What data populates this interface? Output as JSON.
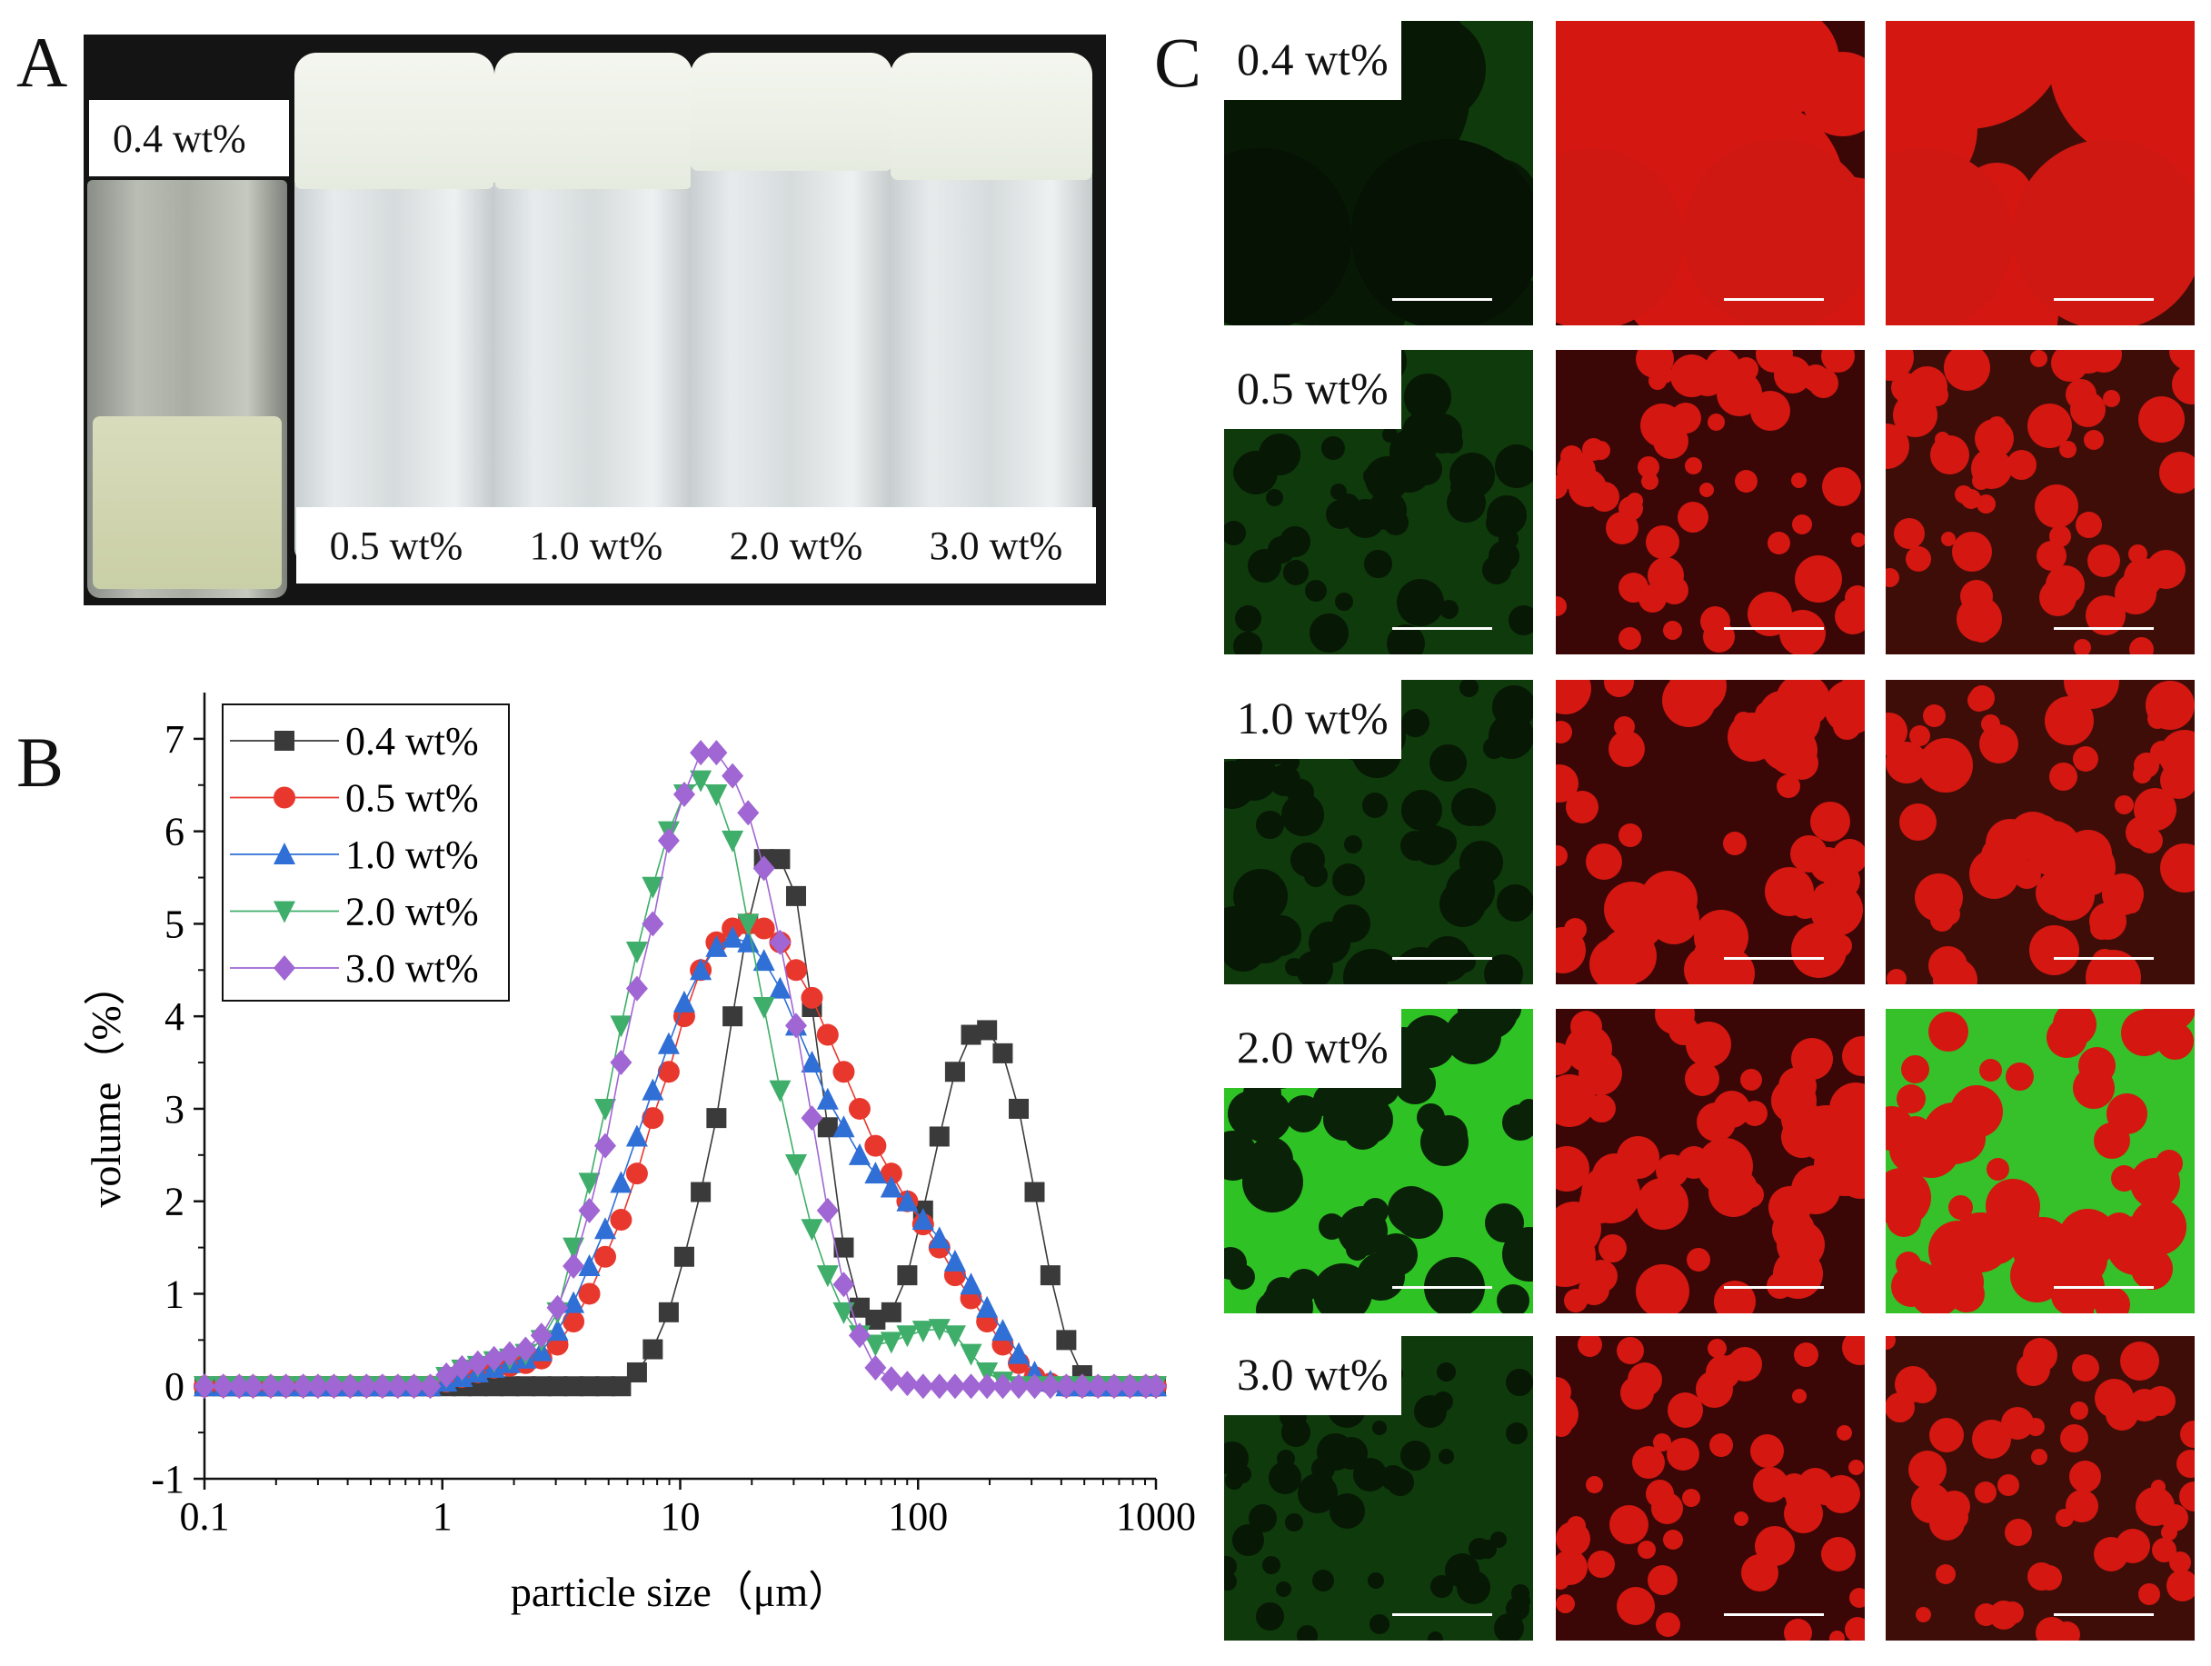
{
  "figure": {
    "panel_labels": {
      "a": "A",
      "b": "B",
      "c": "C"
    }
  },
  "panel_a": {
    "jar_labels": [
      "0.4 wt%",
      "0.5 wt%",
      "1.0 wt%",
      "2.0 wt%",
      "3.0 wt%"
    ]
  },
  "panel_c": {
    "row_labels": [
      "0.4 wt%",
      "0.5 wt%",
      "1.0 wt%",
      "2.0 wt%",
      "3.0 wt%"
    ],
    "colors": {
      "green": "#1fd61a",
      "red": "#e0120c",
      "dark_green": "#0b2208",
      "dark_red": "#3a0606"
    }
  },
  "chart_data": {
    "type": "scatter",
    "xscale": "log",
    "xlabel": "particle size（μm）",
    "ylabel": "volume（%）",
    "xlim": [
      0.1,
      1000
    ],
    "ylim": [
      -1,
      7.5
    ],
    "xticks": [
      "0.1",
      "1",
      "10",
      "100",
      "1000"
    ],
    "yticks": [
      "-1",
      "0",
      "1",
      "2",
      "3",
      "4",
      "5",
      "6",
      "7"
    ],
    "legend_position": "top-left",
    "series": [
      {
        "name": "0.4 wt%",
        "marker": "square",
        "color": "#3a3a3a",
        "points": [
          [
            0.1,
            0
          ],
          [
            0.12,
            0
          ],
          [
            0.14,
            0
          ],
          [
            0.16,
            0
          ],
          [
            0.19,
            0
          ],
          [
            0.22,
            0
          ],
          [
            0.26,
            0
          ],
          [
            0.3,
            0
          ],
          [
            0.35,
            0
          ],
          [
            0.41,
            0
          ],
          [
            0.48,
            0
          ],
          [
            0.56,
            0
          ],
          [
            0.65,
            0
          ],
          [
            0.76,
            0
          ],
          [
            0.89,
            0
          ],
          [
            1.04,
            0
          ],
          [
            1.21,
            0
          ],
          [
            1.41,
            0
          ],
          [
            1.65,
            0
          ],
          [
            1.92,
            0
          ],
          [
            2.24,
            0
          ],
          [
            2.61,
            0
          ],
          [
            3.05,
            0
          ],
          [
            3.56,
            0
          ],
          [
            4.15,
            0
          ],
          [
            4.84,
            0
          ],
          [
            5.64,
            0
          ],
          [
            6.58,
            0.15
          ],
          [
            7.67,
            0.4
          ],
          [
            8.95,
            0.8
          ],
          [
            10.4,
            1.4
          ],
          [
            12.2,
            2.1
          ],
          [
            14.2,
            2.9
          ],
          [
            16.6,
            4.0
          ],
          [
            19.3,
            5.0
          ],
          [
            22.5,
            5.7
          ],
          [
            26.3,
            5.7
          ],
          [
            30.7,
            5.3
          ],
          [
            35.8,
            4.1
          ],
          [
            41.7,
            2.8
          ],
          [
            48.7,
            1.5
          ],
          [
            56.8,
            0.85
          ],
          [
            66.2,
            0.72
          ],
          [
            77.2,
            0.8
          ],
          [
            90.1,
            1.2
          ],
          [
            105,
            1.9
          ],
          [
            123,
            2.7
          ],
          [
            143,
            3.4
          ],
          [
            167,
            3.8
          ],
          [
            195,
            3.85
          ],
          [
            227,
            3.6
          ],
          [
            265,
            3.0
          ],
          [
            309,
            2.1
          ],
          [
            360,
            1.2
          ],
          [
            420,
            0.5
          ],
          [
            490,
            0.12
          ],
          [
            571,
            0
          ],
          [
            667,
            0
          ],
          [
            778,
            0
          ],
          [
            907,
            0
          ],
          [
            1000,
            0
          ]
        ]
      },
      {
        "name": "0.5 wt%",
        "marker": "circle",
        "color": "#e8382e",
        "points": [
          [
            0.1,
            0
          ],
          [
            0.12,
            0
          ],
          [
            0.14,
            0
          ],
          [
            0.16,
            0
          ],
          [
            0.19,
            0
          ],
          [
            0.22,
            0
          ],
          [
            0.26,
            0
          ],
          [
            0.3,
            0
          ],
          [
            0.35,
            0
          ],
          [
            0.41,
            0
          ],
          [
            0.48,
            0
          ],
          [
            0.56,
            0
          ],
          [
            0.65,
            0
          ],
          [
            0.76,
            0
          ],
          [
            0.89,
            0
          ],
          [
            1.04,
            0.05
          ],
          [
            1.21,
            0.1
          ],
          [
            1.41,
            0.15
          ],
          [
            1.65,
            0.2
          ],
          [
            1.92,
            0.22
          ],
          [
            2.24,
            0.25
          ],
          [
            2.61,
            0.3
          ],
          [
            3.05,
            0.45
          ],
          [
            3.56,
            0.7
          ],
          [
            4.15,
            1.0
          ],
          [
            4.84,
            1.4
          ],
          [
            5.64,
            1.8
          ],
          [
            6.58,
            2.3
          ],
          [
            7.67,
            2.9
          ],
          [
            8.95,
            3.4
          ],
          [
            10.4,
            4.0
          ],
          [
            12.2,
            4.5
          ],
          [
            14.2,
            4.8
          ],
          [
            16.6,
            4.95
          ],
          [
            19.3,
            5.0
          ],
          [
            22.5,
            4.95
          ],
          [
            26.3,
            4.8
          ],
          [
            30.7,
            4.5
          ],
          [
            35.8,
            4.2
          ],
          [
            41.7,
            3.8
          ],
          [
            48.7,
            3.4
          ],
          [
            56.8,
            3.0
          ],
          [
            66.2,
            2.6
          ],
          [
            77.2,
            2.3
          ],
          [
            90.1,
            2.0
          ],
          [
            105,
            1.75
          ],
          [
            123,
            1.5
          ],
          [
            143,
            1.2
          ],
          [
            167,
            0.95
          ],
          [
            195,
            0.7
          ],
          [
            227,
            0.45
          ],
          [
            265,
            0.25
          ],
          [
            309,
            0.1
          ],
          [
            360,
            0.03
          ],
          [
            420,
            0
          ],
          [
            490,
            0
          ],
          [
            571,
            0
          ],
          [
            667,
            0
          ],
          [
            778,
            0
          ],
          [
            907,
            0
          ],
          [
            1000,
            0
          ]
        ]
      },
      {
        "name": "1.0 wt%",
        "marker": "triangle-up",
        "color": "#2f6fd6",
        "points": [
          [
            0.1,
            0
          ],
          [
            0.12,
            0
          ],
          [
            0.14,
            0
          ],
          [
            0.16,
            0
          ],
          [
            0.19,
            0
          ],
          [
            0.22,
            0
          ],
          [
            0.26,
            0
          ],
          [
            0.3,
            0
          ],
          [
            0.35,
            0
          ],
          [
            0.41,
            0
          ],
          [
            0.48,
            0
          ],
          [
            0.56,
            0
          ],
          [
            0.65,
            0
          ],
          [
            0.76,
            0
          ],
          [
            0.89,
            0
          ],
          [
            1.04,
            0.05
          ],
          [
            1.21,
            0.1
          ],
          [
            1.41,
            0.15
          ],
          [
            1.65,
            0.2
          ],
          [
            1.92,
            0.25
          ],
          [
            2.24,
            0.3
          ],
          [
            2.61,
            0.38
          ],
          [
            3.05,
            0.6
          ],
          [
            3.56,
            0.9
          ],
          [
            4.15,
            1.3
          ],
          [
            4.84,
            1.7
          ],
          [
            5.64,
            2.2
          ],
          [
            6.58,
            2.7
          ],
          [
            7.67,
            3.2
          ],
          [
            8.95,
            3.7
          ],
          [
            10.4,
            4.15
          ],
          [
            12.2,
            4.5
          ],
          [
            14.2,
            4.75
          ],
          [
            16.6,
            4.85
          ],
          [
            19.3,
            4.8
          ],
          [
            22.5,
            4.6
          ],
          [
            26.3,
            4.3
          ],
          [
            30.7,
            3.9
          ],
          [
            35.8,
            3.5
          ],
          [
            41.7,
            3.1
          ],
          [
            48.7,
            2.8
          ],
          [
            56.8,
            2.5
          ],
          [
            66.2,
            2.3
          ],
          [
            77.2,
            2.15
          ],
          [
            90.1,
            2.0
          ],
          [
            105,
            1.8
          ],
          [
            123,
            1.6
          ],
          [
            143,
            1.35
          ],
          [
            167,
            1.1
          ],
          [
            195,
            0.85
          ],
          [
            227,
            0.6
          ],
          [
            265,
            0.35
          ],
          [
            309,
            0.15
          ],
          [
            360,
            0.05
          ],
          [
            420,
            0
          ],
          [
            490,
            0
          ],
          [
            571,
            0
          ],
          [
            667,
            0
          ],
          [
            778,
            0
          ],
          [
            907,
            0
          ],
          [
            1000,
            0
          ]
        ]
      },
      {
        "name": "2.0 wt%",
        "marker": "triangle-down",
        "color": "#3fae6a",
        "points": [
          [
            0.1,
            0
          ],
          [
            0.12,
            0
          ],
          [
            0.14,
            0
          ],
          [
            0.16,
            0
          ],
          [
            0.19,
            0
          ],
          [
            0.22,
            0
          ],
          [
            0.26,
            0
          ],
          [
            0.3,
            0
          ],
          [
            0.35,
            0
          ],
          [
            0.41,
            0
          ],
          [
            0.48,
            0
          ],
          [
            0.56,
            0
          ],
          [
            0.65,
            0
          ],
          [
            0.76,
            0
          ],
          [
            0.89,
            0
          ],
          [
            1.04,
            0.1
          ],
          [
            1.21,
            0.18
          ],
          [
            1.41,
            0.22
          ],
          [
            1.65,
            0.27
          ],
          [
            1.92,
            0.3
          ],
          [
            2.24,
            0.35
          ],
          [
            2.61,
            0.5
          ],
          [
            3.05,
            0.8
          ],
          [
            3.56,
            1.5
          ],
          [
            4.15,
            2.2
          ],
          [
            4.84,
            3.0
          ],
          [
            5.64,
            3.9
          ],
          [
            6.58,
            4.7
          ],
          [
            7.67,
            5.4
          ],
          [
            8.95,
            6.0
          ],
          [
            10.4,
            6.4
          ],
          [
            12.2,
            6.55
          ],
          [
            14.2,
            6.4
          ],
          [
            16.6,
            5.9
          ],
          [
            19.3,
            5.0
          ],
          [
            22.5,
            4.1
          ],
          [
            26.3,
            3.2
          ],
          [
            30.7,
            2.4
          ],
          [
            35.8,
            1.7
          ],
          [
            41.7,
            1.2
          ],
          [
            48.7,
            0.8
          ],
          [
            56.8,
            0.55
          ],
          [
            66.2,
            0.45
          ],
          [
            77.2,
            0.48
          ],
          [
            90.1,
            0.55
          ],
          [
            105,
            0.6
          ],
          [
            123,
            0.62
          ],
          [
            143,
            0.55
          ],
          [
            167,
            0.35
          ],
          [
            195,
            0.15
          ],
          [
            227,
            0.05
          ],
          [
            265,
            0
          ],
          [
            309,
            0
          ],
          [
            360,
            0
          ],
          [
            420,
            0
          ],
          [
            490,
            0
          ],
          [
            571,
            0
          ],
          [
            667,
            0
          ],
          [
            778,
            0
          ],
          [
            907,
            0
          ],
          [
            1000,
            0
          ]
        ]
      },
      {
        "name": "3.0 wt%",
        "marker": "diamond",
        "color": "#a066d3",
        "points": [
          [
            0.1,
            0
          ],
          [
            0.12,
            0
          ],
          [
            0.14,
            0
          ],
          [
            0.16,
            0
          ],
          [
            0.19,
            0
          ],
          [
            0.22,
            0
          ],
          [
            0.26,
            0
          ],
          [
            0.3,
            0
          ],
          [
            0.35,
            0
          ],
          [
            0.41,
            0
          ],
          [
            0.48,
            0
          ],
          [
            0.56,
            0
          ],
          [
            0.65,
            0
          ],
          [
            0.76,
            0
          ],
          [
            0.89,
            0
          ],
          [
            1.04,
            0.12
          ],
          [
            1.21,
            0.2
          ],
          [
            1.41,
            0.25
          ],
          [
            1.65,
            0.3
          ],
          [
            1.92,
            0.35
          ],
          [
            2.24,
            0.4
          ],
          [
            2.61,
            0.55
          ],
          [
            3.05,
            0.85
          ],
          [
            3.56,
            1.3
          ],
          [
            4.15,
            1.9
          ],
          [
            4.84,
            2.6
          ],
          [
            5.64,
            3.5
          ],
          [
            6.58,
            4.3
          ],
          [
            7.67,
            5.0
          ],
          [
            8.95,
            5.9
          ],
          [
            10.4,
            6.4
          ],
          [
            12.2,
            6.85
          ],
          [
            14.2,
            6.85
          ],
          [
            16.6,
            6.6
          ],
          [
            19.3,
            6.2
          ],
          [
            22.5,
            5.6
          ],
          [
            26.3,
            4.8
          ],
          [
            30.7,
            3.9
          ],
          [
            35.8,
            2.9
          ],
          [
            41.7,
            1.9
          ],
          [
            48.7,
            1.1
          ],
          [
            56.8,
            0.55
          ],
          [
            66.2,
            0.2
          ],
          [
            77.2,
            0.08
          ],
          [
            90.1,
            0.03
          ],
          [
            105,
            0
          ],
          [
            123,
            0
          ],
          [
            143,
            0
          ],
          [
            167,
            0
          ],
          [
            195,
            0
          ],
          [
            227,
            0
          ],
          [
            265,
            0
          ],
          [
            309,
            0
          ],
          [
            360,
            0
          ],
          [
            420,
            0
          ],
          [
            490,
            0
          ],
          [
            571,
            0
          ],
          [
            667,
            0
          ],
          [
            778,
            0
          ],
          [
            907,
            0
          ],
          [
            1000,
            0
          ]
        ]
      }
    ]
  }
}
